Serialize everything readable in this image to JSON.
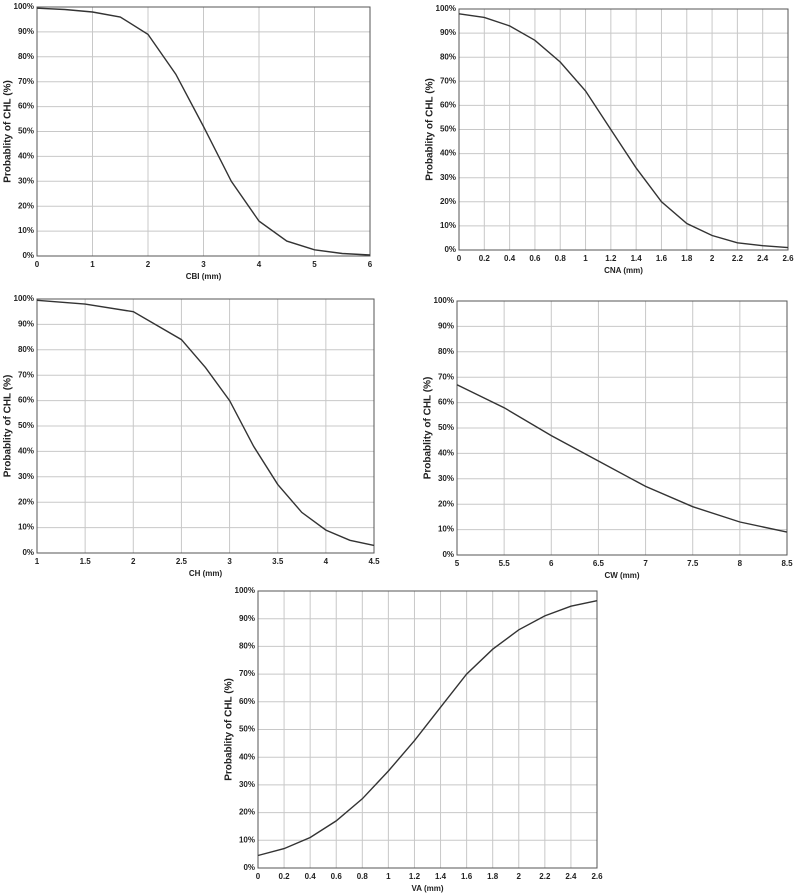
{
  "chart_data": [
    {
      "type": "line",
      "xlabel": "CBI (mm)",
      "ylabel": "Probablity of CHL (%)",
      "grid": true,
      "x": [
        0,
        0.5,
        1,
        1.5,
        2,
        2.5,
        3,
        3.5,
        4,
        4.5,
        5,
        5.5,
        6
      ],
      "values": [
        99.5,
        99,
        98,
        96,
        89,
        73,
        52,
        30,
        14,
        6,
        2.5,
        1,
        0.4
      ],
      "color": "#333333",
      "xlim": [
        0,
        6
      ],
      "xticks": [
        0,
        1,
        2,
        3,
        4,
        5,
        6
      ],
      "ylim": [
        0,
        100
      ],
      "yticks": [
        {
          "value": 0,
          "label": "0%"
        },
        {
          "value": 10,
          "label": "10%"
        },
        {
          "value": 20,
          "label": "20%"
        },
        {
          "value": 30,
          "label": "30%"
        },
        {
          "value": 40,
          "label": "40%"
        },
        {
          "value": 50,
          "label": "50%"
        },
        {
          "value": 60,
          "label": "60%"
        },
        {
          "value": 70,
          "label": "70%"
        },
        {
          "value": 80,
          "label": "80%"
        },
        {
          "value": 90,
          "label": "90%"
        },
        {
          "value": 100,
          "label": "100%"
        }
      ]
    },
    {
      "type": "line",
      "xlabel": "CNA (mm)",
      "ylabel": "Probablity of CHL (%)",
      "grid": true,
      "x": [
        0,
        0.2,
        0.4,
        0.6,
        0.8,
        1,
        1.2,
        1.4,
        1.6,
        1.8,
        2,
        2.2,
        2.4,
        2.6
      ],
      "values": [
        98,
        96.5,
        93,
        87,
        78,
        66,
        50,
        34,
        20,
        11,
        6,
        3,
        1.8,
        1
      ],
      "color": "#333333",
      "xlim": [
        0,
        2.6
      ],
      "xticks": [
        0,
        0.2,
        0.4,
        0.6,
        0.8,
        1,
        1.2,
        1.4,
        1.6,
        1.8,
        2,
        2.2,
        2.4,
        2.6
      ],
      "ylim": [
        0,
        100
      ],
      "yticks": [
        {
          "value": 0,
          "label": "0%"
        },
        {
          "value": 10,
          "label": "10%"
        },
        {
          "value": 20,
          "label": "20%"
        },
        {
          "value": 30,
          "label": "30%"
        },
        {
          "value": 40,
          "label": "40%"
        },
        {
          "value": 50,
          "label": "50%"
        },
        {
          "value": 60,
          "label": "60%"
        },
        {
          "value": 70,
          "label": "70%"
        },
        {
          "value": 80,
          "label": "80%"
        },
        {
          "value": 90,
          "label": "90%"
        },
        {
          "value": 100,
          "label": "100%"
        }
      ]
    },
    {
      "type": "line",
      "xlabel": "CH (mm)",
      "ylabel": "Probablity of CHL (%)",
      "grid": true,
      "x": [
        1,
        1.5,
        2,
        2.5,
        2.75,
        3,
        3.25,
        3.5,
        3.75,
        4,
        4.25,
        4.5
      ],
      "values": [
        99.5,
        98,
        95,
        84,
        73,
        60,
        42,
        27,
        16,
        9,
        5,
        3
      ],
      "color": "#333333",
      "xlim": [
        1,
        4.5
      ],
      "xticks": [
        1,
        1.5,
        2,
        2.5,
        3,
        3.5,
        4,
        4.5
      ],
      "ylim": [
        0,
        100
      ],
      "yticks": [
        {
          "value": 0,
          "label": "0%"
        },
        {
          "value": 10,
          "label": "10%"
        },
        {
          "value": 20,
          "label": "20%"
        },
        {
          "value": 30,
          "label": "30%"
        },
        {
          "value": 40,
          "label": "40%"
        },
        {
          "value": 50,
          "label": "50%"
        },
        {
          "value": 60,
          "label": "60%"
        },
        {
          "value": 70,
          "label": "70%"
        },
        {
          "value": 80,
          "label": "80%"
        },
        {
          "value": 90,
          "label": "90%"
        },
        {
          "value": 100,
          "label": "100%"
        }
      ]
    },
    {
      "type": "line",
      "xlabel": "CW (mm)",
      "ylabel": "Probablity of CHL (%)",
      "grid": true,
      "x": [
        5,
        5.5,
        6,
        6.5,
        7,
        7.5,
        8,
        8.5
      ],
      "values": [
        67,
        58,
        47,
        37,
        27,
        19,
        13,
        9
      ],
      "color": "#333333",
      "xlim": [
        5,
        8.5
      ],
      "xticks": [
        5,
        5.5,
        6,
        6.5,
        7,
        7.5,
        8,
        8.5
      ],
      "ylim": [
        0,
        100
      ],
      "yticks": [
        {
          "value": 0,
          "label": "0%"
        },
        {
          "value": 10,
          "label": "10%"
        },
        {
          "value": 20,
          "label": "20%"
        },
        {
          "value": 30,
          "label": "30%"
        },
        {
          "value": 40,
          "label": "40%"
        },
        {
          "value": 50,
          "label": "50%"
        },
        {
          "value": 60,
          "label": "60%"
        },
        {
          "value": 70,
          "label": "70%"
        },
        {
          "value": 80,
          "label": "80%"
        },
        {
          "value": 90,
          "label": "90%"
        },
        {
          "value": 100,
          "label": "100%"
        }
      ]
    },
    {
      "type": "line",
      "xlabel": "VA (mm)",
      "ylabel": "Probablity of CHL (%)",
      "grid": true,
      "x": [
        0,
        0.2,
        0.4,
        0.6,
        0.8,
        1,
        1.2,
        1.4,
        1.6,
        1.8,
        2,
        2.2,
        2.4,
        2.6
      ],
      "values": [
        4.5,
        7,
        11,
        17,
        25,
        35,
        46,
        58,
        70,
        79,
        86,
        91,
        94.5,
        96.5
      ],
      "color": "#333333",
      "xlim": [
        0,
        2.6
      ],
      "xticks": [
        0,
        0.2,
        0.4,
        0.6,
        0.8,
        1,
        1.2,
        1.4,
        1.6,
        1.8,
        2,
        2.2,
        2.4,
        2.6
      ],
      "ylim": [
        0,
        100
      ],
      "yticks": [
        {
          "value": 0,
          "label": "0%"
        },
        {
          "value": 10,
          "label": "10%"
        },
        {
          "value": 20,
          "label": "20%"
        },
        {
          "value": 30,
          "label": "30%"
        },
        {
          "value": 40,
          "label": "40%"
        },
        {
          "value": 50,
          "label": "50%"
        },
        {
          "value": 60,
          "label": "60%"
        },
        {
          "value": 70,
          "label": "70%"
        },
        {
          "value": 80,
          "label": "80%"
        },
        {
          "value": 90,
          "label": "90%"
        },
        {
          "value": 100,
          "label": "100%"
        }
      ]
    }
  ]
}
